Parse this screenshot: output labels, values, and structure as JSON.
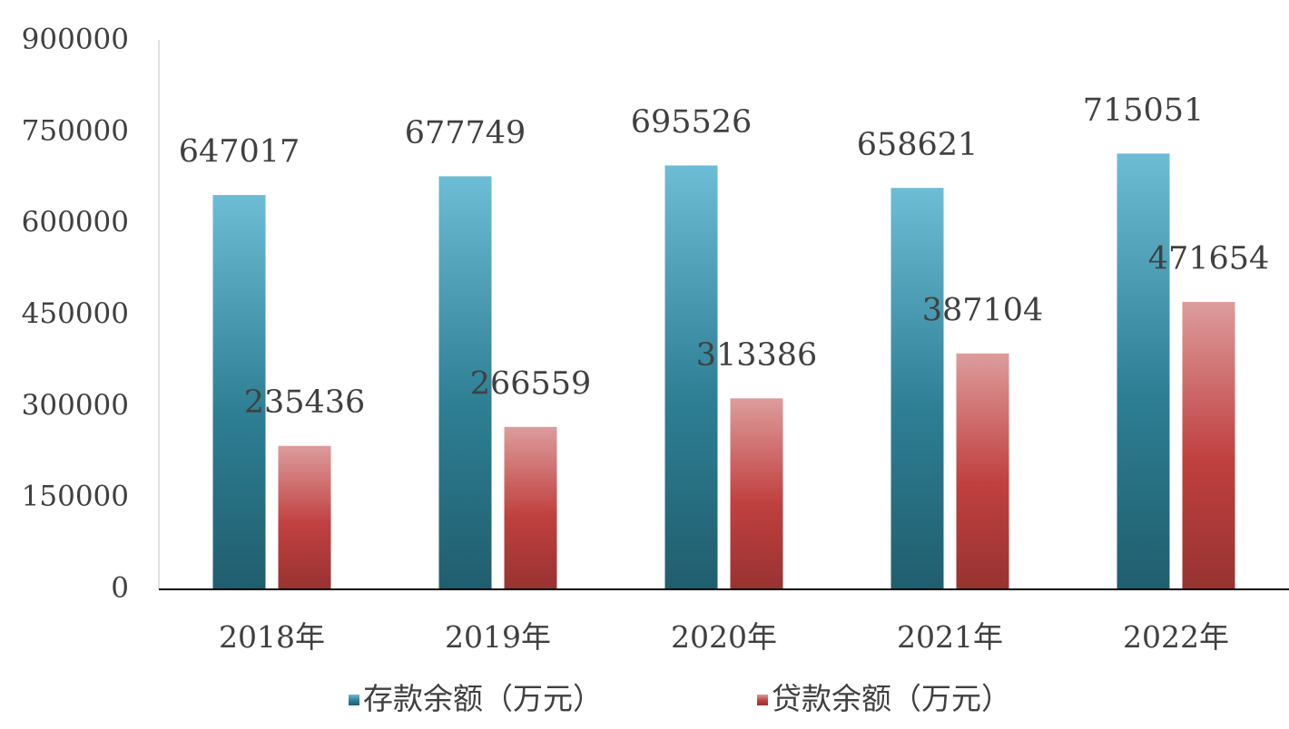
{
  "chart_data": {
    "type": "bar",
    "categories": [
      "2018年",
      "2019年",
      "2020年",
      "2021年",
      "2022年"
    ],
    "series": [
      {
        "name": "存款余额（万元）",
        "color": "#3b8fa6",
        "values": [
          647017,
          677749,
          695526,
          658621,
          715051
        ]
      },
      {
        "name": "贷款余额（万元）",
        "color": "#c0403f",
        "values": [
          235436,
          266559,
          313386,
          387104,
          471654
        ]
      }
    ],
    "ylim": [
      0,
      900000
    ],
    "yticks": [
      0,
      150000,
      300000,
      450000,
      600000,
      750000,
      900000
    ],
    "grid": false,
    "legend": "bottom"
  }
}
